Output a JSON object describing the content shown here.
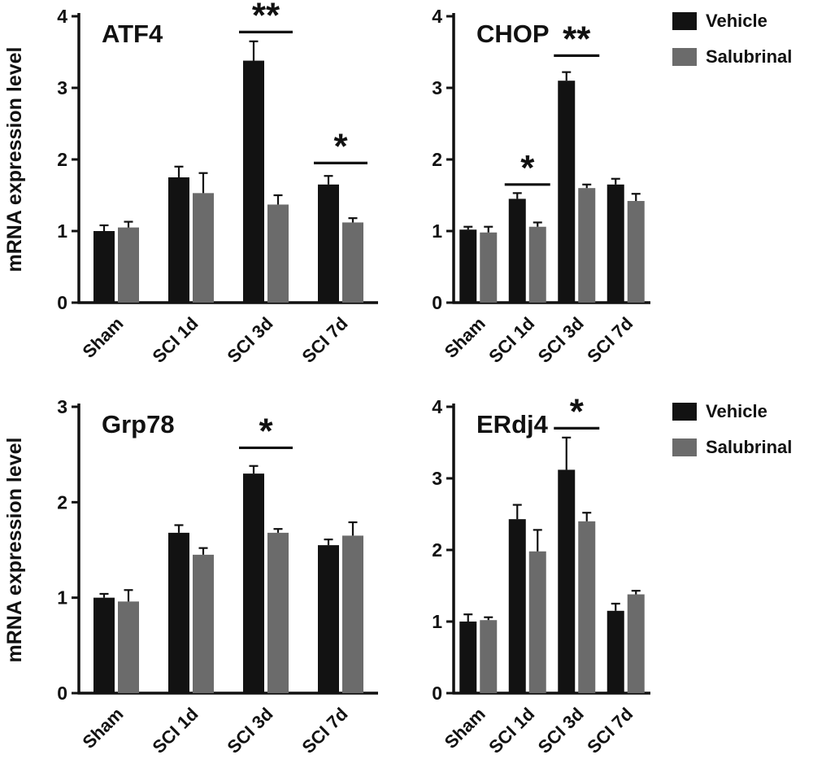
{
  "figure": {
    "background": "#ffffff",
    "axis_color": "#111111",
    "ylabel": "mRNA expression level",
    "legend": {
      "entries": [
        {
          "label": "Vehicle",
          "color": "#121212"
        },
        {
          "label": "Salubrinal",
          "color": "#6b6b6b"
        }
      ]
    }
  },
  "chart_data": [
    {
      "type": "bar",
      "title": "ATF4",
      "ylabel": "mRNA expression level",
      "ylim": [
        0,
        4
      ],
      "yticks": [
        0,
        1,
        2,
        3,
        4
      ],
      "categories": [
        "Sham",
        "SCI 1d",
        "SCI 3d",
        "SCI 7d"
      ],
      "series": [
        {
          "name": "Vehicle",
          "color": "#121212",
          "values": [
            1.0,
            1.75,
            3.38,
            1.65
          ],
          "errors": [
            0.08,
            0.15,
            0.27,
            0.12
          ]
        },
        {
          "name": "Salubrinal",
          "color": "#6b6b6b",
          "values": [
            1.05,
            1.53,
            1.37,
            1.12
          ],
          "errors": [
            0.08,
            0.28,
            0.13,
            0.06
          ]
        }
      ],
      "significance": [
        {
          "category": "SCI 3d",
          "label": "**",
          "y": 3.78
        },
        {
          "category": "SCI 7d",
          "label": "*",
          "y": 1.95
        }
      ],
      "grid": false,
      "show_ylabel": true,
      "show_legend": false
    },
    {
      "type": "bar",
      "title": "CHOP",
      "ylabel": "mRNA expression level",
      "ylim": [
        0,
        4
      ],
      "yticks": [
        0,
        1,
        2,
        3,
        4
      ],
      "categories": [
        "Sham",
        "SCI 1d",
        "SCI 3d",
        "SCI 7d"
      ],
      "series": [
        {
          "name": "Vehicle",
          "color": "#121212",
          "values": [
            1.02,
            1.45,
            3.1,
            1.65
          ],
          "errors": [
            0.04,
            0.08,
            0.12,
            0.08
          ]
        },
        {
          "name": "Salubrinal",
          "color": "#6b6b6b",
          "values": [
            0.98,
            1.06,
            1.6,
            1.42
          ],
          "errors": [
            0.08,
            0.06,
            0.05,
            0.1
          ]
        }
      ],
      "significance": [
        {
          "category": "SCI 1d",
          "label": "*",
          "y": 1.65
        },
        {
          "category": "SCI 3d",
          "label": "**",
          "y": 3.45
        }
      ],
      "grid": false,
      "show_ylabel": false,
      "show_legend": true,
      "legend_position": "top-right"
    },
    {
      "type": "bar",
      "title": "Grp78",
      "ylabel": "mRNA expression level",
      "ylim": [
        0,
        3
      ],
      "yticks": [
        0,
        1,
        2,
        3
      ],
      "categories": [
        "Sham",
        "SCI 1d",
        "SCI 3d",
        "SCI 7d"
      ],
      "series": [
        {
          "name": "Vehicle",
          "color": "#121212",
          "values": [
            1.0,
            1.68,
            2.3,
            1.55
          ],
          "errors": [
            0.04,
            0.08,
            0.08,
            0.06
          ]
        },
        {
          "name": "Salubrinal",
          "color": "#6b6b6b",
          "values": [
            0.96,
            1.45,
            1.68,
            1.65
          ],
          "errors": [
            0.12,
            0.07,
            0.04,
            0.14
          ]
        }
      ],
      "significance": [
        {
          "category": "SCI 3d",
          "label": "*",
          "y": 2.57
        }
      ],
      "grid": false,
      "show_ylabel": true,
      "show_legend": false
    },
    {
      "type": "bar",
      "title": "ERdj4",
      "ylabel": "mRNA expression level",
      "ylim": [
        0,
        4
      ],
      "yticks": [
        0,
        1,
        2,
        3,
        4
      ],
      "categories": [
        "Sham",
        "SCI 1d",
        "SCI 3d",
        "SCI 7d"
      ],
      "series": [
        {
          "name": "Vehicle",
          "color": "#121212",
          "values": [
            1.0,
            2.43,
            3.12,
            1.15
          ],
          "errors": [
            0.1,
            0.2,
            0.45,
            0.1
          ]
        },
        {
          "name": "Salubrinal",
          "color": "#6b6b6b",
          "values": [
            1.02,
            1.98,
            2.4,
            1.38
          ],
          "errors": [
            0.04,
            0.3,
            0.12,
            0.05
          ]
        }
      ],
      "significance": [
        {
          "category": "SCI 3d",
          "label": "*",
          "y": 3.7
        }
      ],
      "grid": false,
      "show_ylabel": false,
      "show_legend": true,
      "legend_position": "top-right"
    }
  ]
}
